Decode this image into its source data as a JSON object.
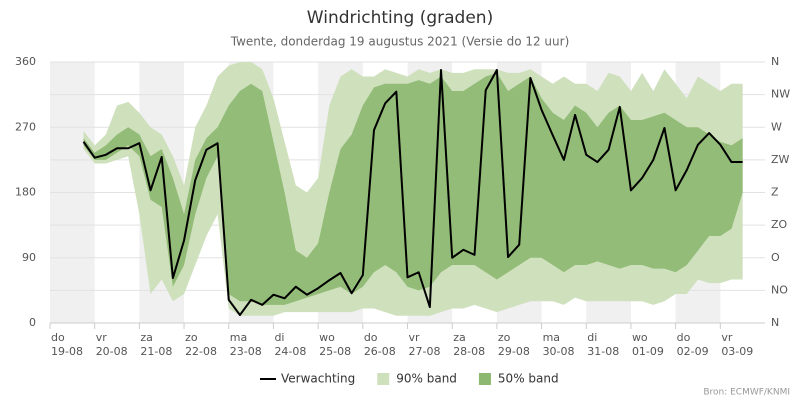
{
  "chart_data": {
    "type": "line-band",
    "title": "Windrichting (graden)",
    "subtitle": "Twente, donderdag 19 augustus 2021 (Versie do 12 uur)",
    "source": "Bron: ECMWF/KNMI",
    "categories": [
      "do 19-08",
      null,
      null,
      null,
      "vr 20-08",
      null,
      null,
      null,
      "za 21-08",
      null,
      null,
      null,
      "zo 22-08",
      null,
      null,
      null,
      "ma 23-08",
      null,
      null,
      null,
      "di 24-08",
      null,
      null,
      null,
      "wo 25-08",
      null,
      null,
      null,
      "do 26-08",
      null,
      null,
      null,
      "vr 27-08",
      null,
      null,
      null,
      "za 28-08",
      null,
      null,
      null,
      "zo 29-08",
      null,
      null,
      null,
      "ma 30-08",
      null,
      null,
      null,
      "di 31-08",
      null,
      null,
      null,
      "wo 01-09",
      null,
      null,
      null,
      "do 02-09",
      null,
      null,
      null,
      "vr 03-09",
      null,
      null,
      null,
      null
    ],
    "ylim": [
      0,
      360
    ],
    "yticks": [
      0,
      90,
      180,
      270,
      360
    ],
    "y2lim": [
      0,
      360
    ],
    "y2ticks": [
      {
        "value": 0,
        "label": "N"
      },
      {
        "value": 45,
        "label": "NO"
      },
      {
        "value": 90,
        "label": "O"
      },
      {
        "value": 135,
        "label": "ZO"
      },
      {
        "value": 180,
        "label": "Z"
      },
      {
        "value": 225,
        "label": "ZW"
      },
      {
        "value": 270,
        "label": "W"
      },
      {
        "value": 315,
        "label": "NW"
      },
      {
        "value": 360,
        "label": "N"
      }
    ],
    "grid": true,
    "series": [
      {
        "name": "Verwachting",
        "color": "#000000",
        "values": [
          null,
          null,
          null,
          250,
          228,
          232,
          241,
          241,
          248,
          183,
          229,
          62,
          114,
          197,
          239,
          248,
          32,
          11,
          32,
          25,
          39,
          34,
          50,
          39,
          48,
          59,
          69,
          41,
          66,
          266,
          303,
          319,
          63,
          70,
          22,
          349,
          90,
          101,
          94,
          321,
          349,
          91,
          108,
          338,
          294,
          259,
          225,
          287,
          232,
          222,
          239,
          298,
          183,
          200,
          225,
          269,
          183,
          211,
          246,
          262,
          246,
          222,
          222,
          null,
          null
        ]
      },
      {
        "name": "90% band",
        "color": "#cfe0bd",
        "low": [
          null,
          null,
          null,
          240,
          220,
          220,
          225,
          230,
          150,
          40,
          60,
          30,
          40,
          80,
          120,
          150,
          20,
          10,
          10,
          10,
          10,
          15,
          15,
          15,
          15,
          15,
          15,
          15,
          20,
          20,
          15,
          10,
          10,
          10,
          10,
          15,
          20,
          20,
          25,
          20,
          15,
          20,
          25,
          30,
          30,
          30,
          25,
          35,
          30,
          30,
          30,
          30,
          30,
          30,
          25,
          30,
          40,
          40,
          60,
          55,
          55,
          60,
          60,
          null,
          null
        ],
        "high": [
          null,
          null,
          null,
          265,
          245,
          260,
          300,
          305,
          290,
          270,
          260,
          230,
          190,
          270,
          300,
          340,
          355,
          360,
          360,
          350,
          310,
          250,
          190,
          180,
          200,
          300,
          340,
          350,
          340,
          340,
          350,
          345,
          340,
          350,
          345,
          350,
          345,
          345,
          350,
          350,
          350,
          345,
          345,
          350,
          340,
          330,
          340,
          330,
          330,
          320,
          345,
          340,
          320,
          345,
          320,
          350,
          330,
          310,
          340,
          330,
          320,
          330,
          330,
          null,
          null
        ]
      },
      {
        "name": "50% band",
        "color": "#8cb870",
        "low": [
          null,
          null,
          null,
          245,
          225,
          225,
          235,
          245,
          230,
          170,
          160,
          50,
          80,
          150,
          200,
          230,
          40,
          30,
          30,
          25,
          25,
          25,
          30,
          35,
          40,
          45,
          50,
          40,
          50,
          70,
          80,
          70,
          50,
          45,
          50,
          70,
          80,
          80,
          80,
          70,
          60,
          70,
          80,
          90,
          90,
          80,
          70,
          80,
          80,
          85,
          80,
          75,
          80,
          80,
          75,
          75,
          70,
          80,
          100,
          120,
          120,
          130,
          180,
          null,
          null
        ],
        "high": [
          null,
          null,
          null,
          255,
          235,
          245,
          260,
          270,
          260,
          230,
          240,
          200,
          150,
          225,
          255,
          270,
          300,
          320,
          330,
          320,
          250,
          180,
          100,
          90,
          110,
          180,
          240,
          260,
          300,
          325,
          330,
          330,
          330,
          335,
          330,
          340,
          320,
          320,
          330,
          340,
          345,
          320,
          330,
          340,
          310,
          290,
          280,
          300,
          290,
          270,
          290,
          300,
          280,
          280,
          285,
          290,
          280,
          270,
          270,
          260,
          250,
          245,
          255,
          null,
          null
        ]
      }
    ]
  }
}
